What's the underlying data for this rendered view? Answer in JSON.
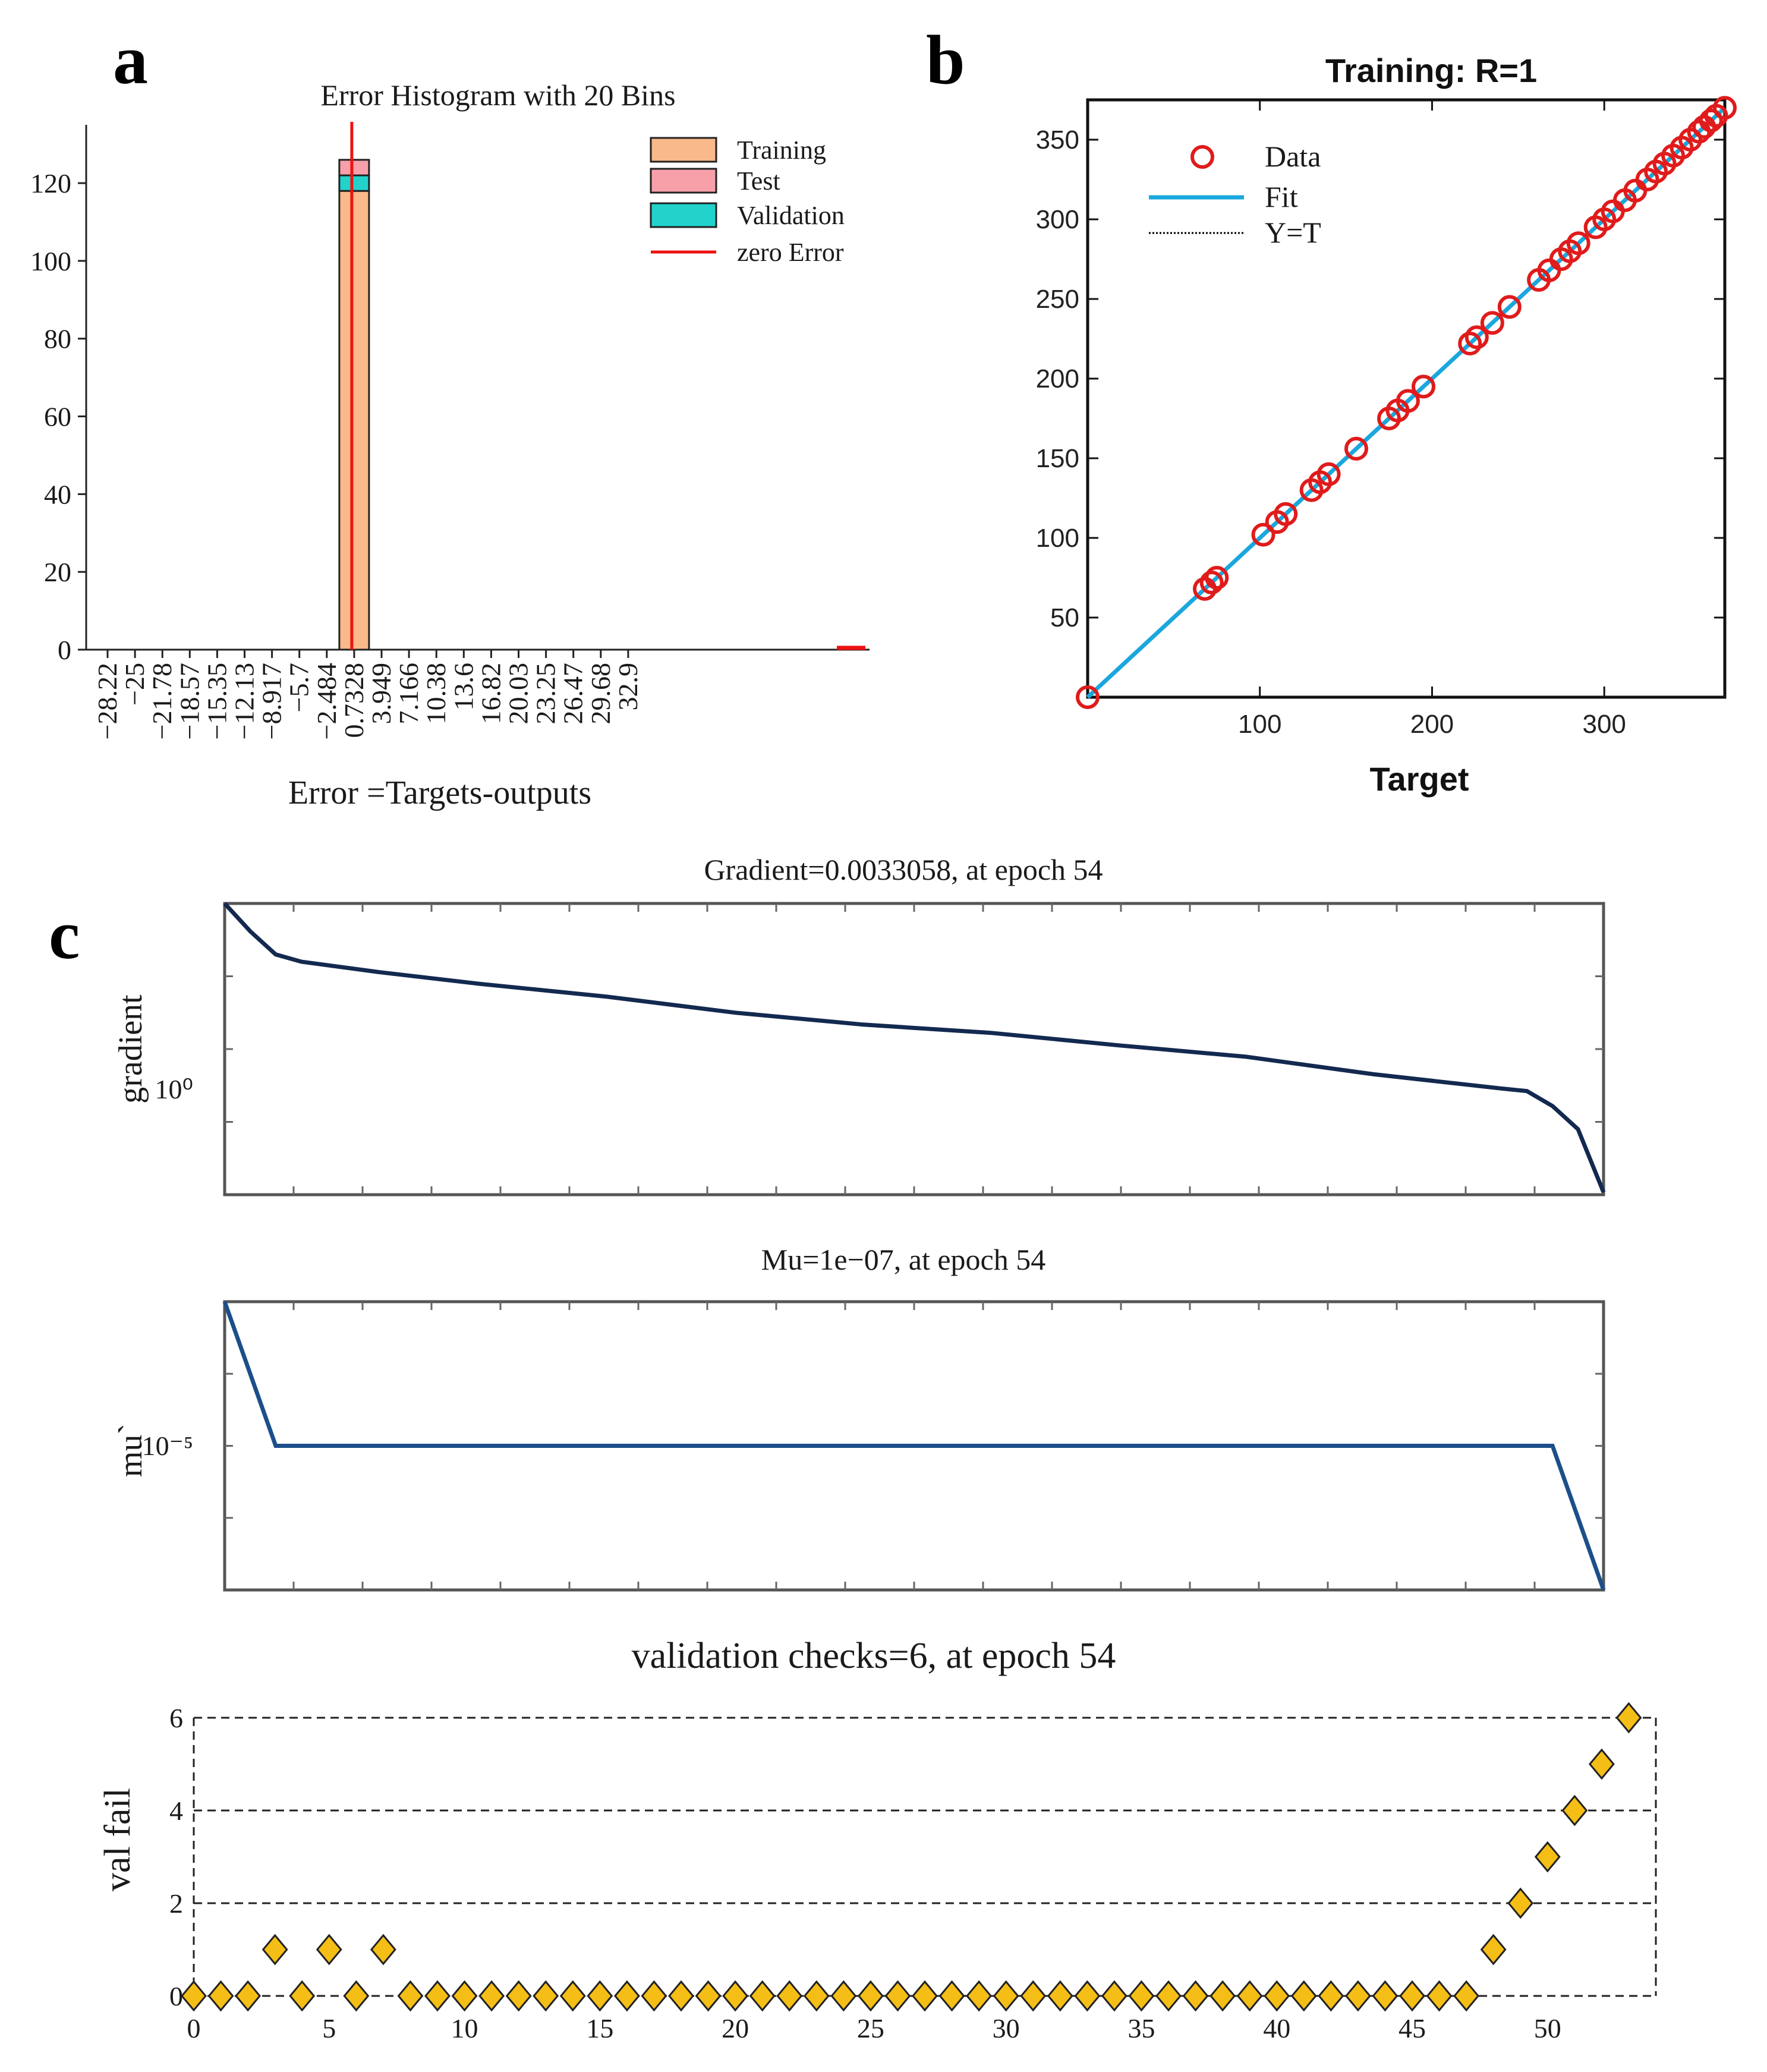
{
  "panel_labels": {
    "a": "a",
    "b": "b",
    "c": "c"
  },
  "chart_data": [
    {
      "id": "a",
      "type": "bar",
      "title": "Error Histogram with 20 Bins",
      "xlabel": "Error =Targets-outputs",
      "ylabel": "",
      "ylim": [
        0,
        135
      ],
      "yticks": [
        0,
        20,
        40,
        60,
        80,
        100,
        120
      ],
      "categories": [
        "−28.22",
        "−25",
        "−21.78",
        "−18.57",
        "−15.35",
        "−12.13",
        "−8.917",
        "−5.7",
        "−2.484",
        "0.7328",
        "3.949",
        "7.166",
        "10.38",
        "13.6",
        "16.82",
        "20.03",
        "23.25",
        "26.47",
        "29.68",
        "32.9"
      ],
      "series": [
        {
          "name": "Training",
          "color": "#f9b98a",
          "values": [
            0,
            0,
            0,
            0,
            0,
            0,
            0,
            0,
            0,
            118,
            0,
            0,
            0,
            0,
            0,
            0,
            0,
            0,
            0,
            0
          ]
        },
        {
          "name": "Validation",
          "color": "#22d3cc",
          "values": [
            0,
            0,
            0,
            0,
            0,
            0,
            0,
            0,
            0,
            4,
            0,
            0,
            0,
            0,
            0,
            0,
            0,
            0,
            0,
            0
          ]
        },
        {
          "name": "Test",
          "color": "#f7a0aa",
          "values": [
            0,
            0,
            0,
            0,
            0,
            0,
            0,
            0,
            0,
            4,
            0,
            0,
            0,
            0,
            0,
            0,
            0,
            0,
            0,
            0
          ]
        }
      ],
      "legend": [
        {
          "name": "Training",
          "color": "#f9b98a",
          "kind": "box"
        },
        {
          "name": " Test",
          "color": "#f7a0aa",
          "kind": "box"
        },
        {
          "name": "Validation",
          "color": "#22d3cc",
          "kind": "box"
        },
        {
          "name": "zero Error",
          "color": "#ee1111",
          "kind": "line"
        }
      ],
      "zero_error_category": "0.7328",
      "legend_position": "top-right"
    },
    {
      "id": "b",
      "type": "scatter",
      "title": "Training:  R=1",
      "xlabel": "Target",
      "ylabel": "",
      "xlim": [
        0,
        370
      ],
      "ylim": [
        0,
        375
      ],
      "xticks": [
        100,
        200,
        300
      ],
      "yticks": [
        50,
        100,
        150,
        200,
        250,
        300,
        350
      ],
      "points": [
        0,
        68,
        72,
        75,
        102,
        110,
        115,
        130,
        135,
        140,
        156,
        175,
        180,
        186,
        195,
        222,
        226,
        235,
        245,
        262,
        268,
        275,
        280,
        285,
        295,
        300,
        305,
        312,
        318,
        325,
        330,
        335,
        340,
        345,
        350,
        355,
        358,
        362,
        365,
        370
      ],
      "fit": {
        "slope": 1,
        "intercept": 0
      },
      "legend": [
        {
          "name": "Data",
          "color": "#e01b1b",
          "kind": "circle"
        },
        {
          "name": "Fit",
          "color": "#1aa7dd",
          "kind": "line"
        },
        {
          "name": "Y=T",
          "color": "#000000",
          "kind": "dotted"
        }
      ],
      "legend_position": "top-left"
    },
    {
      "id": "c1",
      "type": "line",
      "title": "Gradient=0.0033058, at epoch 54",
      "ylabel": "gradient",
      "yscale": "log",
      "ylim": [
        0.003,
        300
      ],
      "ytick_label": "10⁰",
      "ytick_value": 1,
      "xlim": [
        0,
        54
      ],
      "x": [
        0,
        1,
        2,
        3,
        6,
        10,
        15,
        20,
        25,
        30,
        35,
        40,
        45,
        50,
        51,
        52,
        53,
        54
      ],
      "y": [
        300,
        100,
        40,
        30,
        20,
        12.5,
        7.5,
        4,
        2.5,
        1.8,
        1.1,
        0.7,
        0.35,
        0.2,
        0.18,
        0.1,
        0.04,
        0.0033
      ],
      "color": "#13294f"
    },
    {
      "id": "c2",
      "type": "line",
      "title": "Mu=1e−07, at epoch 54",
      "ylabel": "mu`",
      "yscale": "log",
      "ylim": [
        1e-07,
        0.001
      ],
      "ytick_label": "10⁻⁵",
      "ytick_value": 1e-05,
      "xlim": [
        0,
        54
      ],
      "x": [
        0,
        2,
        52,
        54
      ],
      "y": [
        0.001,
        1e-05,
        1e-05,
        1e-07
      ],
      "color": "#1c4f8a"
    },
    {
      "id": "c3",
      "type": "scatter",
      "title": "validation checks=6, at epoch 54",
      "ylabel": "val fail",
      "xlim": [
        0,
        54
      ],
      "ylim": [
        0,
        6
      ],
      "xticks": [
        0,
        5,
        10,
        15,
        20,
        25,
        30,
        35,
        40,
        45,
        50
      ],
      "yticks": [
        0,
        2,
        4,
        6
      ],
      "x": [
        0,
        1,
        2,
        3,
        4,
        5,
        6,
        7,
        8,
        9,
        10,
        11,
        12,
        13,
        14,
        15,
        16,
        17,
        18,
        19,
        20,
        21,
        22,
        23,
        24,
        25,
        26,
        27,
        28,
        29,
        30,
        31,
        32,
        33,
        34,
        35,
        36,
        37,
        38,
        39,
        40,
        41,
        42,
        43,
        44,
        45,
        46,
        47,
        48,
        49,
        50,
        51,
        52,
        53
      ],
      "y": [
        0,
        0,
        0,
        1,
        0,
        1,
        0,
        1,
        0,
        0,
        0,
        0,
        0,
        0,
        0,
        0,
        0,
        0,
        0,
        0,
        0,
        0,
        0,
        0,
        0,
        0,
        0,
        0,
        0,
        0,
        0,
        0,
        0,
        0,
        0,
        0,
        0,
        0,
        0,
        0,
        0,
        0,
        0,
        0,
        0,
        0,
        0,
        0,
        1,
        2,
        3,
        4,
        5,
        6
      ],
      "marker_color": "#f5be16"
    }
  ]
}
